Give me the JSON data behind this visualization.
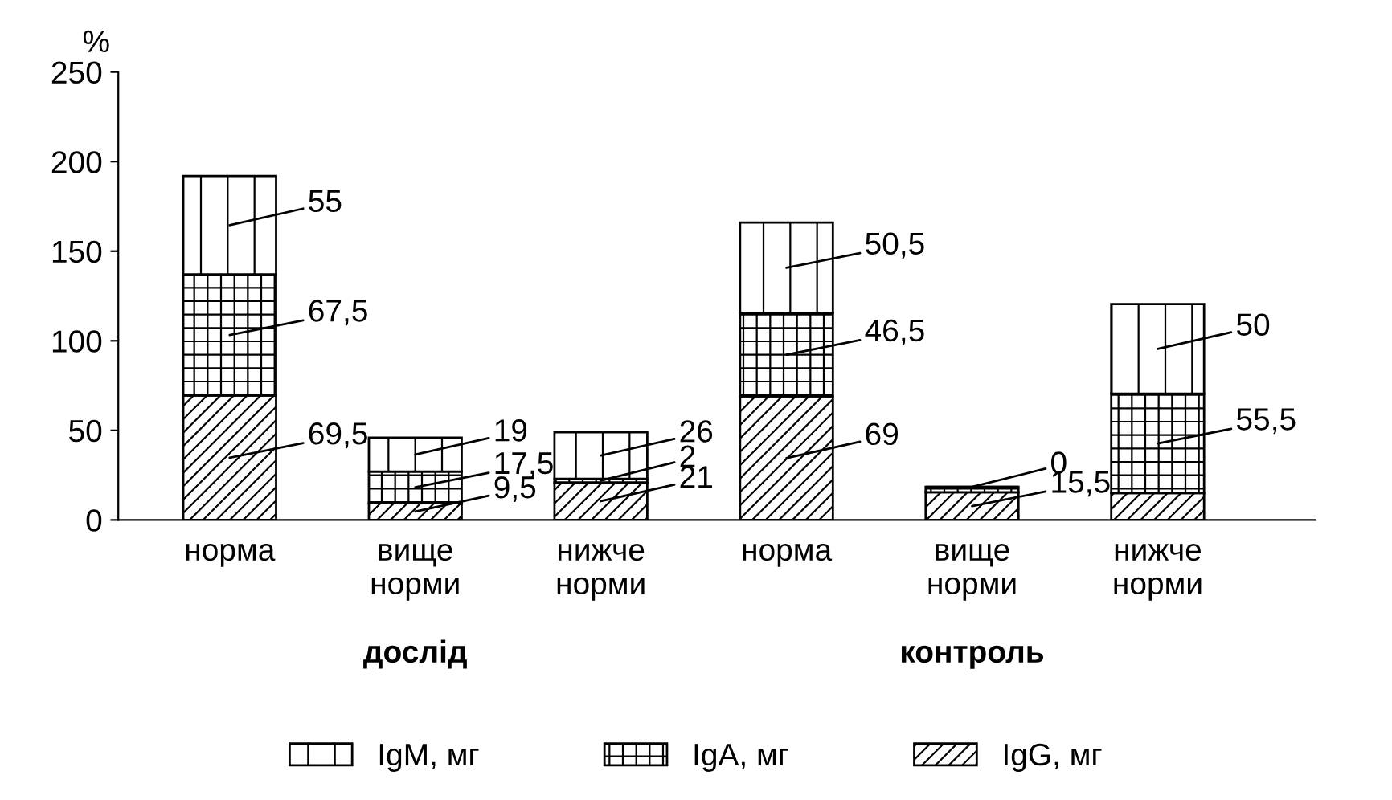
{
  "chart_data": {
    "type": "bar",
    "stacked": true,
    "ylabel": "%",
    "categories": [
      "норма",
      "вище\nнорми",
      "нижче\nнорми",
      "норма",
      "вище\nнорми",
      "нижче\nнорми"
    ],
    "series": [
      {
        "name": "IgG, мг",
        "color": "#000000",
        "values": [
          69.5,
          9.5,
          21,
          69,
          15.5,
          15
        ],
        "value_labels": [
          "69,5",
          "9,5",
          "21",
          "69",
          "15,5",
          null
        ]
      },
      {
        "name": "IgA, мг",
        "color": "#000000",
        "values": [
          67.5,
          17.5,
          2,
          46.5,
          3,
          55.5
        ],
        "value_labels": [
          "67,5",
          "17,5",
          "2",
          "46,5",
          null,
          "55,5"
        ]
      },
      {
        "name": "IgM, мг",
        "color": "#000000",
        "values": [
          55,
          19,
          26,
          50.5,
          0,
          50
        ],
        "value_labels": [
          "55",
          "19",
          "26",
          "50,5",
          "0",
          "50"
        ]
      }
    ],
    "ylim": [
      0,
      250
    ],
    "yticks": [
      0,
      50,
      100,
      150,
      200,
      250
    ],
    "grid": false,
    "legend": "bottom",
    "annotations": [
      "дослід",
      "контроль"
    ]
  }
}
